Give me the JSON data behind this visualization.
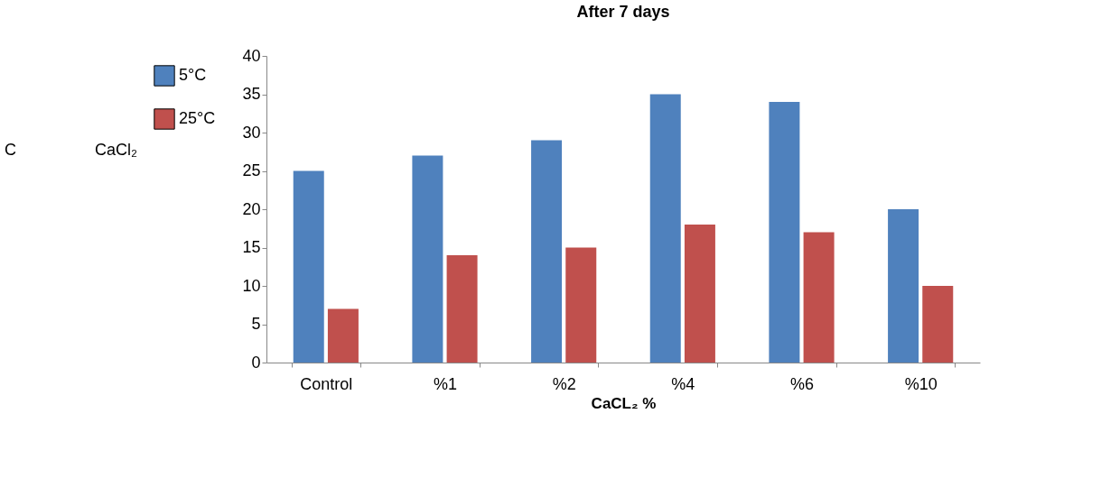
{
  "chart_data": {
    "type": "bar",
    "title": "After 7 days",
    "xlabel": "CaCL₂ %",
    "categories": [
      "Control",
      "%1",
      "%2",
      "%4",
      "%6",
      "%10"
    ],
    "series": [
      {
        "name": "5°C",
        "color": "#4f81bd",
        "values": [
          25,
          27,
          29,
          35,
          34,
          20
        ]
      },
      {
        "name": "25°C",
        "color": "#c0504d",
        "values": [
          7,
          14,
          15,
          18,
          17,
          10
        ]
      }
    ],
    "ylim": [
      0,
      40
    ],
    "yticks": [
      0,
      5,
      10,
      15,
      20,
      25,
      30,
      35,
      40
    ],
    "grid": false,
    "legend": "left",
    "annotations": [
      "C",
      "CaCl₂"
    ]
  }
}
